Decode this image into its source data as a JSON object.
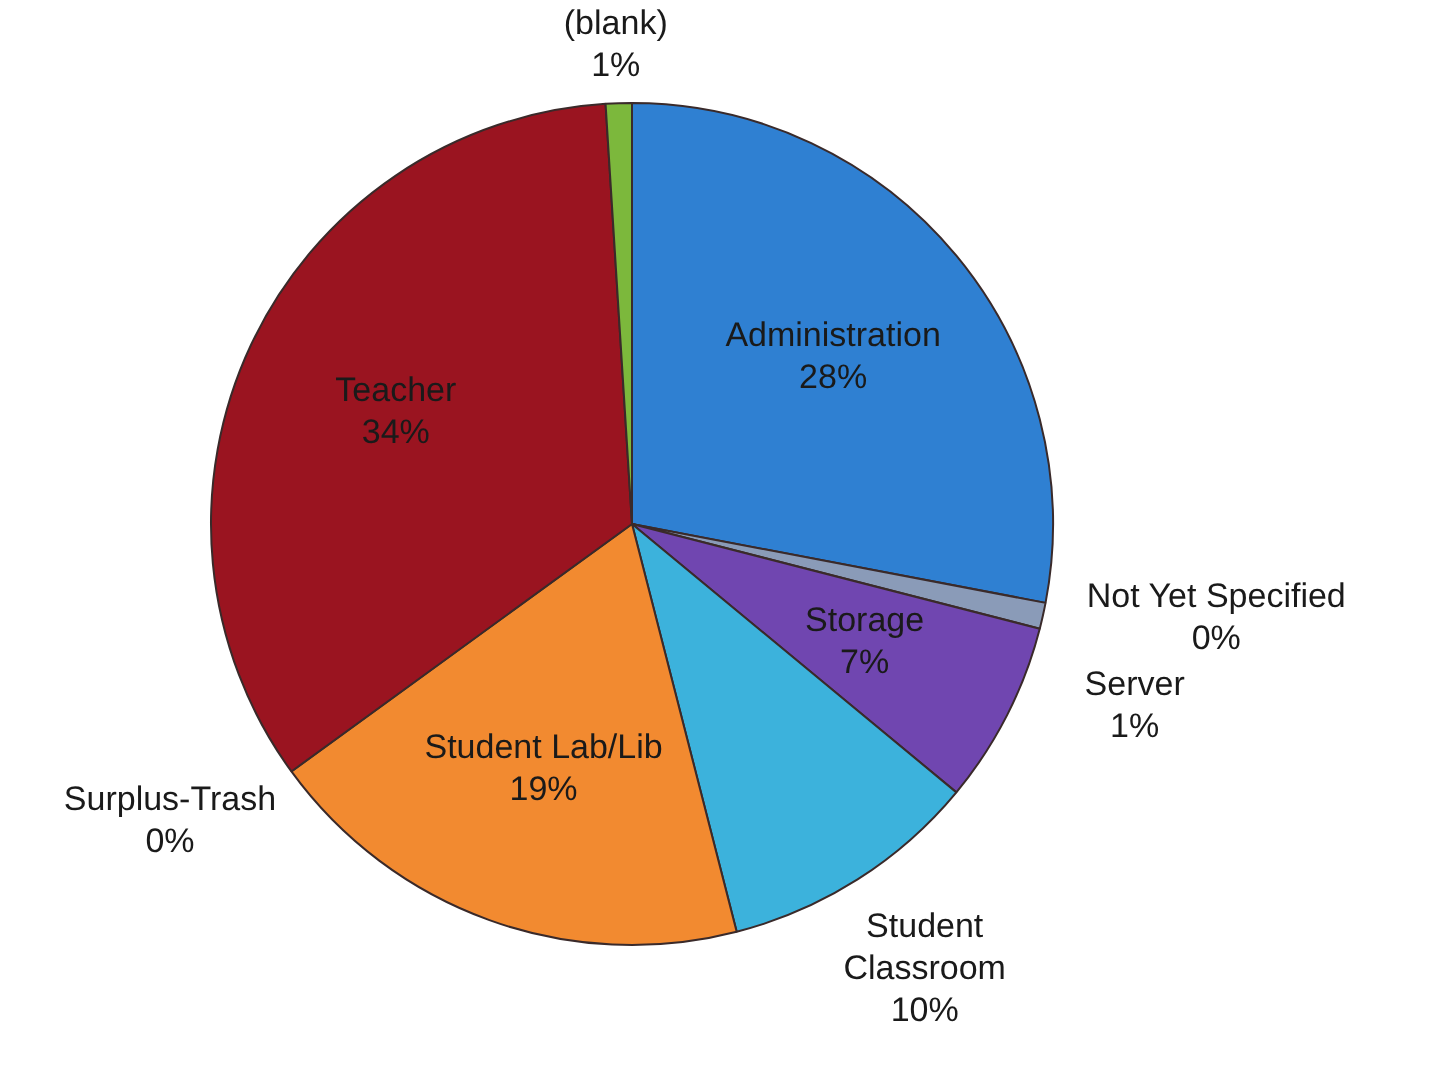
{
  "chart_data": {
    "type": "pie",
    "categories": [
      "Administration",
      "Not Yet Specified",
      "Server",
      "Storage",
      "Student Classroom",
      "Student Lab/Lib",
      "Surplus-Trash",
      "Teacher",
      "(blank)"
    ],
    "values": [
      28,
      0,
      1,
      7,
      10,
      19,
      0,
      34,
      1
    ],
    "value_labels": [
      "28%",
      "0%",
      "1%",
      "7%",
      "10%",
      "19%",
      "0%",
      "34%",
      "1%"
    ],
    "colors": [
      "#2f80d2",
      "#b7d35a",
      "#8a9bb8",
      "#7046b0",
      "#3cb2dc",
      "#f28a30",
      "#b0b0b0",
      "#9a1420",
      "#7cb83c"
    ],
    "legend": false
  }
}
